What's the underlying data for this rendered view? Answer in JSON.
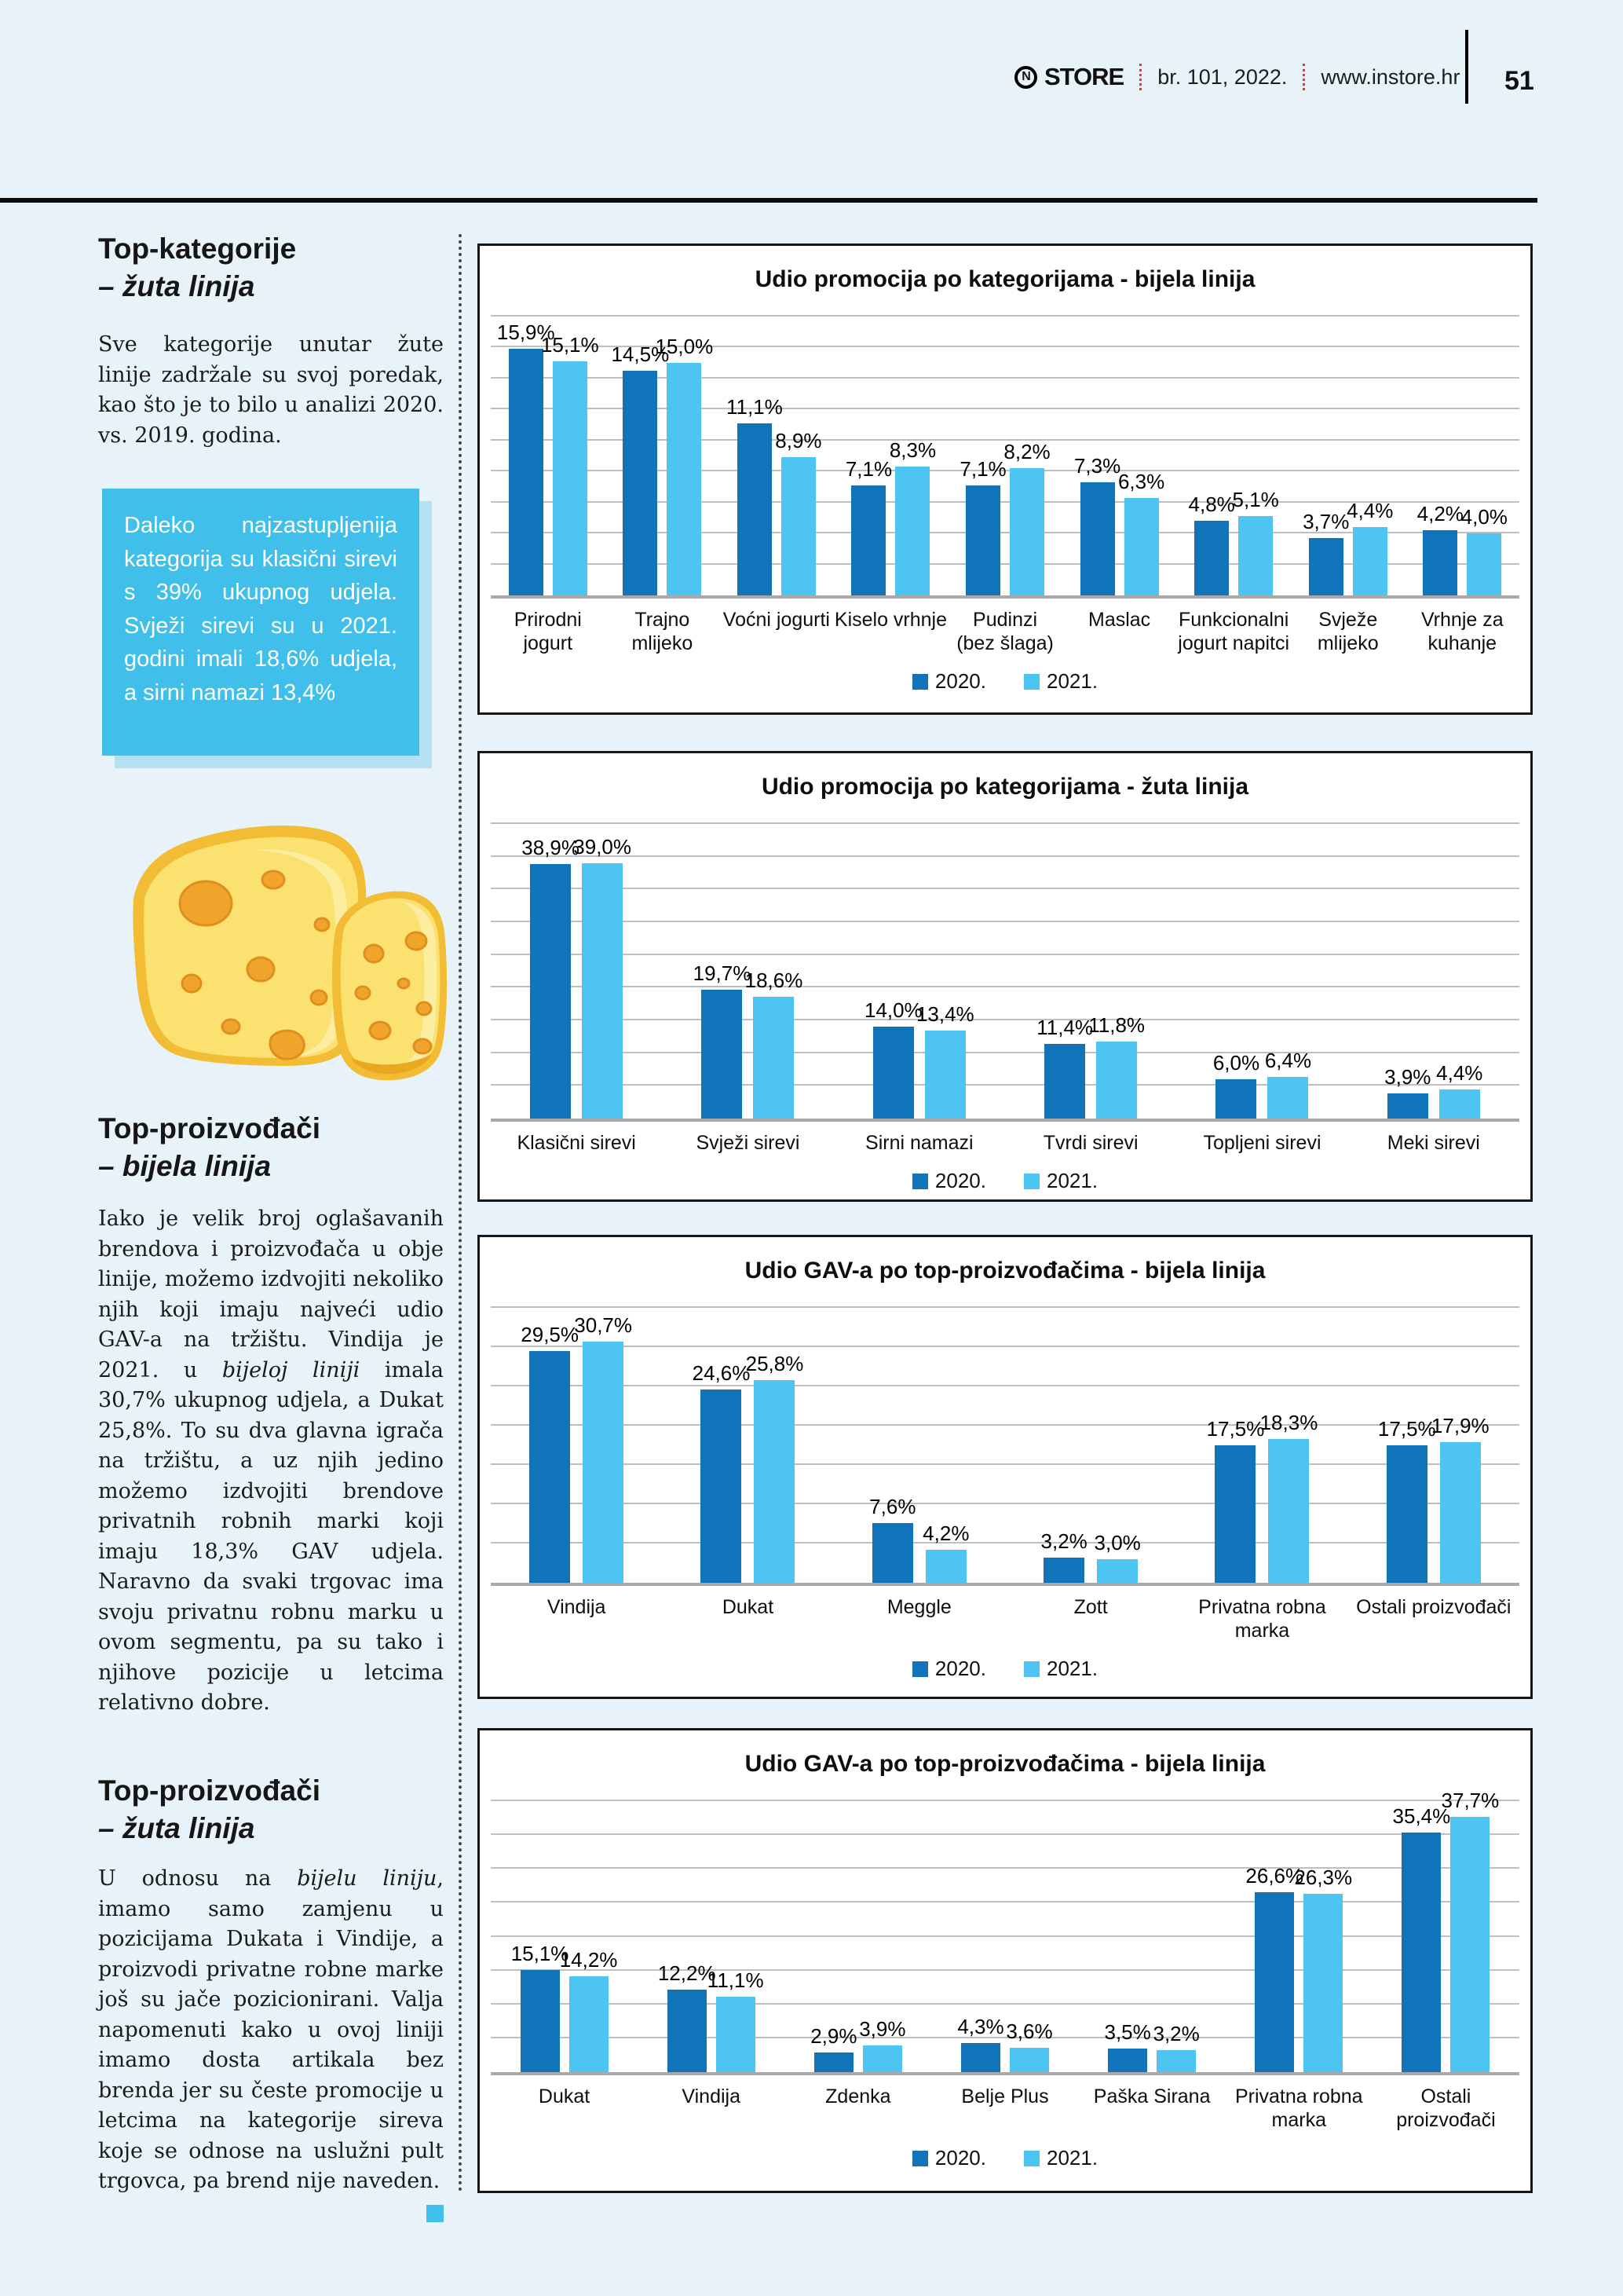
{
  "header": {
    "brand": "STORE",
    "brand_mark": "N",
    "issue": "br. 101, 2022.",
    "site": "www.instore.hr",
    "page_number": "51"
  },
  "colors": {
    "page_bg": "#E8F2F9",
    "bar_2020": "#1173B9",
    "bar_2021": "#4EC4F2",
    "accent_callout": "#3FBFE9",
    "callout_shadow": "#B5E2F3",
    "red_dotted_separator": "#E2382A",
    "gridline": "#BFBFBF"
  },
  "left_column": {
    "section1": {
      "title": "Top-kategorije",
      "subtitle": "– žuta linija",
      "body": "Sve kategorije unutar žute linije zadržale su svoj poredak, kao što je to bilo u analizi 2020. vs. 2019. godina."
    },
    "callout": {
      "text": "Daleko najzastupljenija kategorija su klasični sirevi s 39% ukupnog udjela. Svježi sirevi su u 2021. godini imali 18,6% udjela, a sirni namazi 13,4%"
    },
    "section2": {
      "title": "Top-proizvođači",
      "subtitle": "– bijela linija",
      "body_runs": [
        {
          "text": "Iako je velik broj oglašavanih brendova i proizvođača u obje linije, možemo izdvojiti nekoliko njih koji imaju najveći udio GAV-a na tržištu. Vindija je 2021. u ",
          "italic": false
        },
        {
          "text": "bijeloj liniji",
          "italic": true
        },
        {
          "text": " imala 30,7% ukupnog udjela, a Dukat 25,8%. To su dva glavna igrača na tržištu, a uz njih jedino možemo izdvojiti brendove privatnih robnih marki koji imaju 18,3% GAV udjela. Naravno da svaki trgovac ima svoju privatnu robnu marku u ovom segmentu, pa su tako i njihove pozicije u letcima relativno dobre.",
          "italic": false
        }
      ]
    },
    "section3": {
      "title": "Top-proizvođači",
      "subtitle": "– žuta linija",
      "body_runs": [
        {
          "text": "U odnosu na ",
          "italic": false
        },
        {
          "text": "bijelu liniju",
          "italic": true
        },
        {
          "text": ", imamo samo zamjenu u pozicijama Dukata i Vindije, a proizvodi privatne robne marke još su jače pozicionirani. Valja napomenuti kako u ovoj liniji imamo dosta artikala bez brenda jer su česte promocije u letcima na kategorije sireva koje se odnose na uslužni pult trgovca, pa brend nije naveden.",
          "italic": false
        }
      ]
    }
  },
  "chart_data": [
    {
      "type": "bar",
      "title": "Udio promocija po kategorijama - bijela linija",
      "ylabel": "",
      "xlabel": "",
      "ylim": [
        0,
        18
      ],
      "grid_step": 2,
      "grid": true,
      "legend_position": "bottom",
      "categories": [
        [
          "Prirodni",
          "jogurt"
        ],
        [
          "Trajno",
          "mlijeko"
        ],
        [
          "Voćni jogurti"
        ],
        [
          "Kiselo vrhnje"
        ],
        [
          "Pudinzi",
          "(bez šlaga)"
        ],
        [
          "Maslac"
        ],
        [
          "Funkcionalni",
          "jogurt napitci"
        ],
        [
          "Svježe",
          "mlijeko"
        ],
        [
          "Vrhnje za",
          "kuhanje"
        ]
      ],
      "series": [
        {
          "name": "2020.",
          "values": [
            15.9,
            14.5,
            11.1,
            7.1,
            7.1,
            7.3,
            4.8,
            3.7,
            4.2
          ]
        },
        {
          "name": "2021.",
          "values": [
            15.1,
            15.0,
            8.9,
            8.3,
            8.2,
            6.3,
            5.1,
            4.4,
            4.0
          ]
        }
      ]
    },
    {
      "type": "bar",
      "title": "Udio promocija po kategorijama - žuta linija",
      "ylabel": "",
      "xlabel": "",
      "ylim": [
        0,
        45
      ],
      "grid_step": 5,
      "grid": true,
      "legend_position": "bottom",
      "categories": [
        [
          "Klasični sirevi"
        ],
        [
          "Svježi sirevi"
        ],
        [
          "Sirni namazi"
        ],
        [
          "Tvrdi sirevi"
        ],
        [
          "Topljeni sirevi"
        ],
        [
          "Meki sirevi"
        ]
      ],
      "series": [
        {
          "name": "2020.",
          "values": [
            38.9,
            19.7,
            14.0,
            11.4,
            6.0,
            3.9
          ]
        },
        {
          "name": "2021.",
          "values": [
            39.0,
            18.6,
            13.4,
            11.8,
            6.4,
            4.4
          ]
        }
      ]
    },
    {
      "type": "bar",
      "title": "Udio GAV-a po top-proizvođačima - bijela linija",
      "ylabel": "",
      "xlabel": "",
      "ylim": [
        0,
        35
      ],
      "grid_step": 5,
      "grid": true,
      "legend_position": "bottom",
      "categories": [
        [
          "Vindija"
        ],
        [
          "Dukat"
        ],
        [
          "Meggle"
        ],
        [
          "Zott"
        ],
        [
          "Privatna robna",
          "marka"
        ],
        [
          "Ostali proizvođači"
        ]
      ],
      "series": [
        {
          "name": "2020.",
          "values": [
            29.5,
            24.6,
            7.6,
            3.2,
            17.5,
            17.5
          ]
        },
        {
          "name": "2021.",
          "values": [
            30.7,
            25.8,
            4.2,
            3.0,
            18.3,
            17.9
          ]
        }
      ]
    },
    {
      "type": "bar",
      "title": "Udio GAV-a po top-proizvođačima - bijela linija",
      "ylabel": "",
      "xlabel": "",
      "ylim": [
        0,
        40
      ],
      "grid_step": 5,
      "grid": true,
      "legend_position": "bottom",
      "categories": [
        [
          "Dukat"
        ],
        [
          "Vindija"
        ],
        [
          "Zdenka"
        ],
        [
          "Belje Plus"
        ],
        [
          "Paška Sirana"
        ],
        [
          "Privatna robna",
          "marka"
        ],
        [
          "Ostali",
          "proizvođači"
        ]
      ],
      "series": [
        {
          "name": "2020.",
          "values": [
            15.1,
            12.2,
            2.9,
            4.3,
            3.5,
            26.6,
            35.4
          ]
        },
        {
          "name": "2021.",
          "values": [
            14.2,
            11.1,
            3.9,
            3.6,
            3.2,
            26.3,
            37.7
          ]
        }
      ]
    }
  ]
}
